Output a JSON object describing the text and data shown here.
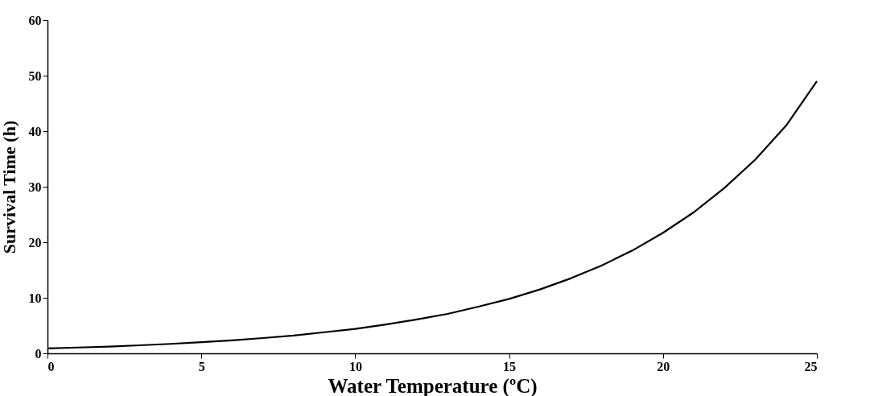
{
  "chart_data": {
    "type": "line",
    "xlabel": "Water Temperature (ºC)",
    "ylabel": "Survival Time (h)",
    "x": [
      0,
      1,
      2,
      3,
      4,
      5,
      6,
      7,
      8,
      9,
      10,
      11,
      12,
      13,
      14,
      15,
      16,
      17,
      18,
      19,
      20,
      21,
      22,
      23,
      24,
      25
    ],
    "series": [
      {
        "color": "#000000",
        "values": [
          0.9,
          1.05,
          1.2,
          1.45,
          1.7,
          2.0,
          2.35,
          2.75,
          3.2,
          3.8,
          4.4,
          5.2,
          6.1,
          7.1,
          8.4,
          9.8,
          11.5,
          13.5,
          15.8,
          18.5,
          21.7,
          25.4,
          29.8,
          34.9,
          41,
          49
        ]
      }
    ],
    "xlim": [
      0,
      25
    ],
    "xticks": [
      0,
      5,
      10,
      15,
      20,
      25
    ],
    "ylim": [
      0,
      60
    ],
    "yticks": [
      0,
      10,
      20,
      30,
      40,
      50,
      60
    ],
    "grid": false,
    "legend": false,
    "marker": "none",
    "line_style": "solid"
  }
}
